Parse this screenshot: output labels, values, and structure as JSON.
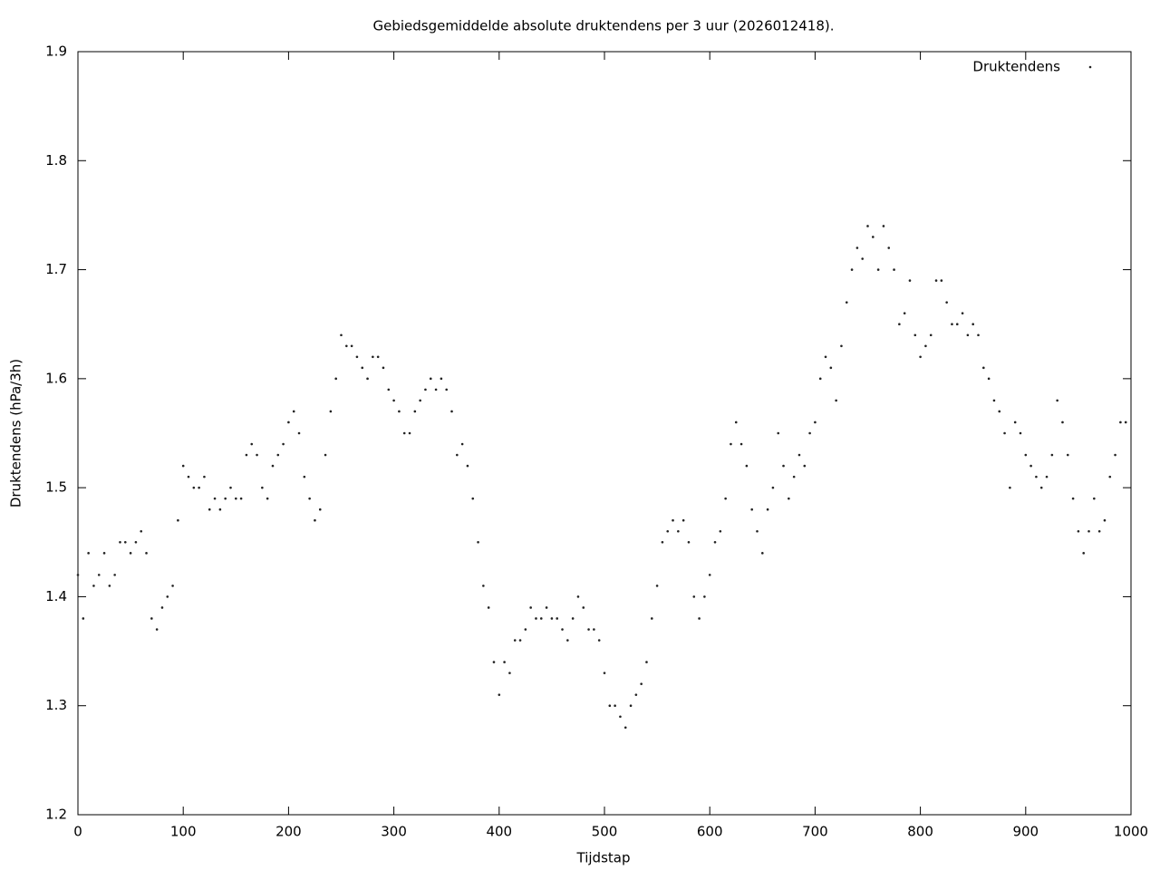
{
  "chart_data": {
    "type": "scatter",
    "title": "Gebiedsgemiddelde absolute druktendens per 3 uur (2026012418).",
    "x_label": "Tijdstap",
    "y_label": "Druktendens (hPa/3h)",
    "xlim": [
      0,
      1000
    ],
    "ylim": [
      1.2,
      1.9
    ],
    "xticks": [
      0,
      100,
      200,
      300,
      400,
      500,
      600,
      700,
      800,
      900,
      1000
    ],
    "yticks": [
      1.2,
      1.3,
      1.4,
      1.5,
      1.6,
      1.7,
      1.8,
      1.9
    ],
    "legend": "top-right",
    "grid": false,
    "x": [
      0,
      5,
      10,
      15,
      20,
      25,
      30,
      35,
      40,
      45,
      50,
      55,
      60,
      65,
      70,
      75,
      80,
      85,
      90,
      95,
      100,
      105,
      110,
      115,
      120,
      125,
      130,
      135,
      140,
      145,
      150,
      155,
      160,
      165,
      170,
      175,
      180,
      185,
      190,
      195,
      200,
      205,
      210,
      215,
      220,
      225,
      230,
      235,
      240,
      245,
      250,
      255,
      260,
      265,
      270,
      275,
      280,
      285,
      290,
      295,
      300,
      305,
      310,
      315,
      320,
      325,
      330,
      335,
      340,
      345,
      350,
      355,
      360,
      365,
      370,
      375,
      380,
      385,
      390,
      395,
      400,
      405,
      410,
      415,
      420,
      425,
      430,
      435,
      440,
      445,
      450,
      455,
      460,
      465,
      470,
      475,
      480,
      485,
      490,
      495,
      500,
      505,
      510,
      515,
      520,
      525,
      530,
      535,
      540,
      545,
      550,
      555,
      560,
      565,
      570,
      575,
      580,
      585,
      590,
      595,
      600,
      605,
      610,
      615,
      620,
      625,
      630,
      635,
      640,
      645,
      650,
      655,
      660,
      665,
      670,
      675,
      680,
      685,
      690,
      695,
      700,
      705,
      710,
      715,
      720,
      725,
      730,
      735,
      740,
      745,
      750,
      755,
      760,
      765,
      770,
      775,
      780,
      785,
      790,
      795,
      800,
      805,
      810,
      815,
      820,
      825,
      830,
      835,
      840,
      845,
      850,
      855,
      860,
      865,
      870,
      875,
      880,
      885,
      890,
      895,
      900,
      905,
      910,
      915,
      920,
      925,
      930,
      935,
      940,
      945,
      950,
      955,
      960,
      965,
      970,
      975,
      980,
      985,
      990,
      995
    ],
    "series": [
      {
        "name": "Druktendens",
        "color": "#222222",
        "values": [
          1.42,
          1.38,
          1.44,
          1.41,
          1.42,
          1.44,
          1.41,
          1.42,
          1.45,
          1.45,
          1.44,
          1.45,
          1.46,
          1.44,
          1.38,
          1.37,
          1.39,
          1.4,
          1.41,
          1.47,
          1.52,
          1.51,
          1.5,
          1.5,
          1.51,
          1.48,
          1.49,
          1.48,
          1.49,
          1.5,
          1.49,
          1.49,
          1.53,
          1.54,
          1.53,
          1.5,
          1.49,
          1.52,
          1.53,
          1.54,
          1.56,
          1.57,
          1.55,
          1.51,
          1.49,
          1.47,
          1.48,
          1.53,
          1.57,
          1.6,
          1.64,
          1.63,
          1.63,
          1.62,
          1.61,
          1.6,
          1.62,
          1.62,
          1.61,
          1.59,
          1.58,
          1.57,
          1.55,
          1.55,
          1.57,
          1.58,
          1.59,
          1.6,
          1.59,
          1.6,
          1.59,
          1.57,
          1.53,
          1.54,
          1.52,
          1.49,
          1.45,
          1.41,
          1.39,
          1.34,
          1.31,
          1.34,
          1.33,
          1.36,
          1.36,
          1.37,
          1.39,
          1.38,
          1.38,
          1.39,
          1.38,
          1.38,
          1.37,
          1.36,
          1.38,
          1.4,
          1.39,
          1.37,
          1.37,
          1.36,
          1.33,
          1.3,
          1.3,
          1.29,
          1.28,
          1.3,
          1.31,
          1.32,
          1.34,
          1.38,
          1.41,
          1.45,
          1.46,
          1.47,
          1.46,
          1.47,
          1.45,
          1.4,
          1.38,
          1.4,
          1.42,
          1.45,
          1.46,
          1.49,
          1.54,
          1.56,
          1.54,
          1.52,
          1.48,
          1.46,
          1.44,
          1.48,
          1.5,
          1.55,
          1.52,
          1.49,
          1.51,
          1.53,
          1.52,
          1.55,
          1.56,
          1.6,
          1.62,
          1.61,
          1.58,
          1.63,
          1.67,
          1.7,
          1.72,
          1.71,
          1.74,
          1.73,
          1.7,
          1.74,
          1.72,
          1.7,
          1.65,
          1.66,
          1.69,
          1.64,
          1.62,
          1.63,
          1.64,
          1.69,
          1.69,
          1.67,
          1.65,
          1.65,
          1.66,
          1.64,
          1.65,
          1.64,
          1.61,
          1.6,
          1.58,
          1.57,
          1.55,
          1.5,
          1.56,
          1.55,
          1.53,
          1.52,
          1.51,
          1.5,
          1.51,
          1.53,
          1.58,
          1.56,
          1.53,
          1.49,
          1.46,
          1.44,
          1.46,
          1.49,
          1.46,
          1.47,
          1.51,
          1.53,
          1.56,
          1.56
        ]
      }
    ]
  }
}
